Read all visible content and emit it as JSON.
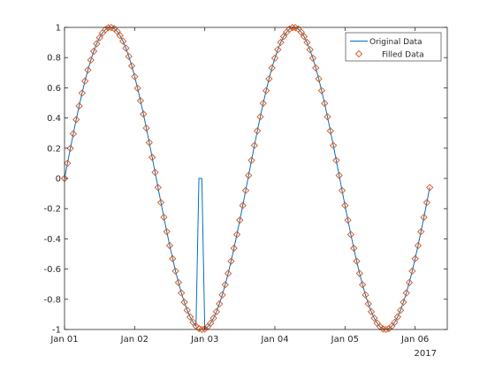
{
  "chart_data": {
    "type": "line",
    "xaxis": {
      "kind": "date",
      "range": [
        "2017-01-01 00:00",
        "2017-01-06 11:00"
      ],
      "ticks": [
        "2017-01-01",
        "2017-01-02",
        "2017-01-03",
        "2017-01-04",
        "2017-01-05",
        "2017-01-06"
      ],
      "tick_labels": [
        "Jan 01",
        "Jan 02",
        "Jan 03",
        "Jan 04",
        "Jan 05",
        "Jan 06"
      ],
      "secondary_label": "2017"
    },
    "yaxis": {
      "range": [
        -1,
        1
      ],
      "ticks": [
        -1,
        -0.8,
        -0.6,
        -0.4,
        -0.2,
        0,
        0.2,
        0.4,
        0.6,
        0.8,
        1
      ],
      "tick_labels": [
        "-1",
        "-0.8",
        "-0.6",
        "-0.4",
        "-0.2",
        "0",
        "0.2",
        "0.4",
        "0.6",
        "0.8",
        "1"
      ]
    },
    "sampling": {
      "start": "2017-01-01 00:00",
      "step_hours": 1,
      "count": 126
    },
    "signal": {
      "form": "sine",
      "amplitude": 1,
      "period_hours": 62.8
    },
    "gap": {
      "from": "2017-01-02 22:00",
      "to": "2017-01-02 23:00",
      "value_in_original": 0
    },
    "grid": false,
    "legend": {
      "position": "top-right"
    },
    "series": [
      {
        "name": "Original Data",
        "style": "line",
        "color": "#0072bd"
      },
      {
        "name": "Filled Data",
        "style": "markers",
        "marker": "diamond",
        "color": "#d95319"
      }
    ]
  }
}
